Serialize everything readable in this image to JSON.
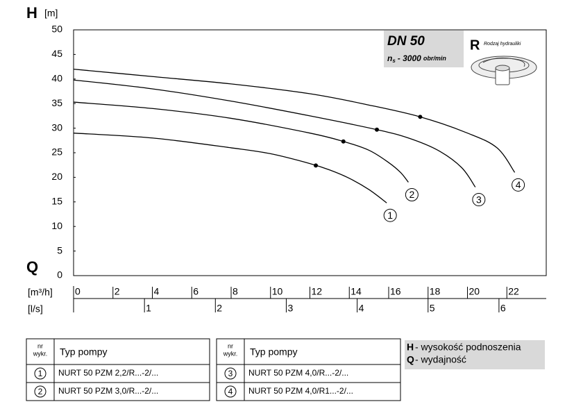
{
  "chart_data": {
    "type": "line",
    "y_symbol": "H",
    "y_unit": "[m]",
    "x_symbol": "Q",
    "x_unit": "[m³/h]",
    "x2_unit": "[l/s]",
    "ylim": [
      0,
      50
    ],
    "yticks": [
      0,
      5,
      10,
      15,
      20,
      25,
      30,
      35,
      40,
      45,
      50
    ],
    "xlim": [
      0,
      24
    ],
    "xticks": [
      0,
      2,
      4,
      6,
      8,
      10,
      12,
      14,
      16,
      18,
      20,
      22
    ],
    "x2lim": [
      0,
      6.6667
    ],
    "x2ticks": [
      1,
      2,
      3,
      4,
      5,
      6
    ],
    "color": "#000000",
    "info_box": {
      "title": "DN 50",
      "speed_symbol": "n",
      "speed_subscript": "s",
      "speed_value": "- 3000",
      "speed_unit": "obr/min"
    },
    "hydraulics": {
      "letter": "R",
      "label": "Rodzaj hydrauliki"
    },
    "series": [
      {
        "name": "1",
        "model": "NURT 50 PZM 2,2/R...-2/...",
        "x": [
          0,
          4,
          8,
          10,
          12,
          13,
          14,
          15,
          15.9
        ],
        "values": [
          29,
          28,
          26,
          24.8,
          22.8,
          21.5,
          19.8,
          17.5,
          14.8
        ],
        "duty_point": [
          12.3,
          22.4
        ]
      },
      {
        "name": "2",
        "model": "NURT 50 PZM 3,0/R...-2/...",
        "x": [
          0,
          4,
          8,
          12,
          13.7,
          15,
          16,
          16.6,
          17
        ],
        "values": [
          35.3,
          34,
          32,
          29,
          27.3,
          25.5,
          23,
          21,
          19
        ],
        "duty_point": [
          13.7,
          27.3
        ]
      },
      {
        "name": "3",
        "model": "NURT 50 PZM 4,0/R...-2/...",
        "x": [
          0,
          4,
          8,
          12,
          15.4,
          17,
          18.5,
          19.7,
          20.4
        ],
        "values": [
          39.8,
          38,
          35.5,
          32.5,
          29.7,
          28,
          25.5,
          22,
          18
        ],
        "duty_point": [
          15.4,
          29.7
        ]
      },
      {
        "name": "4",
        "model": "NURT 50 PZM 4,0/R1...-2/...",
        "x": [
          0,
          4,
          8,
          12,
          15,
          17.6,
          20,
          21.5,
          22.4
        ],
        "values": [
          42,
          40.5,
          39,
          37,
          34.7,
          32.3,
          29,
          26,
          21
        ],
        "duty_point": [
          17.6,
          32.3
        ]
      }
    ],
    "table": {
      "nr_line1": "nr",
      "nr_line2": "wykr.",
      "type_header": "Typ pompy"
    },
    "legend": [
      {
        "symbol": "H",
        "text": "- wysokość podnoszenia"
      },
      {
        "symbol": "Q",
        "text": "- wydajność"
      }
    ]
  }
}
